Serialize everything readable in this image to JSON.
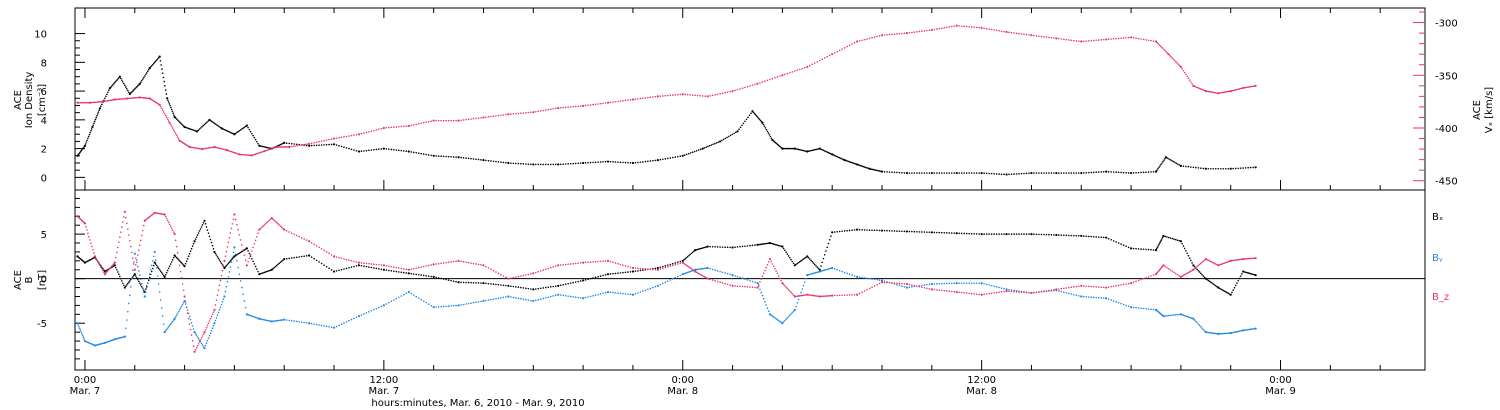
{
  "colors": {
    "black": "#000000",
    "blue": "#1e88e5",
    "red": "#e8366b",
    "axis": "#000000"
  },
  "footer": {
    "xlabel": "hours:minutes, Mar. 6, 2010 - Mar. 9, 2010"
  },
  "x_ticks": [
    {
      "time": "0:00",
      "date": "Mar. 7",
      "hours": 24
    },
    {
      "time": "12:00",
      "date": "Mar. 7",
      "hours": 36
    },
    {
      "time": "0:00",
      "date": "Mar. 8",
      "hours": 48
    },
    {
      "time": "12:00",
      "date": "Mar. 8",
      "hours": 60
    },
    {
      "time": "0:00",
      "date": "Mar. 9",
      "hours": 72
    }
  ],
  "chart_data": [
    {
      "type": "scatter",
      "panel": "top",
      "x_unit": "hours since Mar. 6, 2010 0:00",
      "xlim": [
        23.6,
        77.8
      ],
      "left_axis": {
        "label_line1": "ACE",
        "label_line2": "Ion Density",
        "label_line3": "[cm⁻³]",
        "ylim": [
          -0.6,
          11.5
        ],
        "ticks": [
          0,
          2,
          4,
          6,
          8,
          10
        ],
        "tick_labels": [
          "0",
          "2",
          "4",
          "6",
          "8",
          "10"
        ]
      },
      "right_axis": {
        "label_line1": "ACE",
        "label_line2": "Vₓ [km/s]",
        "ylim": [
          -455,
          -290
        ],
        "ticks": [
          -450,
          -400,
          -350,
          -300
        ],
        "tick_labels": [
          "-450",
          "-400",
          "-350",
          "-300"
        ]
      },
      "series": [
        {
          "axis": "left",
          "color": "black",
          "x": [
            23.7,
            24.0,
            24.3,
            24.6,
            25.0,
            25.4,
            25.8,
            26.2,
            26.6,
            27.0,
            27.3,
            27.6,
            28.0,
            28.5,
            29.0,
            29.5,
            30.0,
            30.5,
            31.0,
            31.5,
            32.0,
            33.0,
            34.0,
            35.0,
            36.0,
            37.0,
            38.0,
            39.0,
            40.0,
            41.0,
            42.0,
            43.0,
            44.0,
            45.0,
            46.0,
            47.0,
            48.0,
            48.8,
            49.5,
            50.2,
            50.8,
            51.2,
            51.6,
            52.0,
            52.5,
            53.0,
            53.5,
            54.0,
            54.5,
            55.0,
            55.5,
            56.0,
            57.0,
            58.0,
            59.0,
            60.0,
            61.0,
            62.0,
            63.0,
            64.0,
            65.0,
            66.0,
            67.0,
            67.4,
            68.0,
            69.0,
            70.0,
            71.0
          ],
          "y": [
            1.5,
            2.2,
            3.5,
            4.8,
            6.2,
            7.0,
            5.8,
            6.5,
            7.6,
            8.4,
            5.5,
            4.2,
            3.5,
            3.2,
            4.0,
            3.4,
            3.0,
            3.6,
            2.2,
            2.0,
            2.4,
            2.2,
            2.3,
            1.8,
            2.0,
            1.8,
            1.5,
            1.4,
            1.2,
            1.0,
            0.9,
            0.9,
            1.0,
            1.1,
            1.0,
            1.2,
            1.5,
            2.0,
            2.5,
            3.2,
            4.6,
            3.8,
            2.6,
            2.0,
            2.0,
            1.8,
            2.0,
            1.6,
            1.2,
            0.9,
            0.6,
            0.4,
            0.3,
            0.3,
            0.3,
            0.3,
            0.2,
            0.3,
            0.3,
            0.3,
            0.4,
            0.3,
            0.4,
            1.4,
            0.8,
            0.6,
            0.6,
            0.7
          ]
        },
        {
          "axis": "right",
          "color": "red",
          "x": [
            23.7,
            24.2,
            24.7,
            25.2,
            25.7,
            26.2,
            26.6,
            27.0,
            27.4,
            27.8,
            28.2,
            28.7,
            29.2,
            29.7,
            30.2,
            30.7,
            31.2,
            31.7,
            32.2,
            33.0,
            34.0,
            35.0,
            36.0,
            37.0,
            38.0,
            39.0,
            40.0,
            41.0,
            42.0,
            43.0,
            44.0,
            45.0,
            46.0,
            47.0,
            48.0,
            49.0,
            50.0,
            51.0,
            52.0,
            53.0,
            54.0,
            55.0,
            56.0,
            57.0,
            58.0,
            59.0,
            60.0,
            61.0,
            62.0,
            63.0,
            64.0,
            65.0,
            66.0,
            67.0,
            67.5,
            68.0,
            68.5,
            69.0,
            69.5,
            70.0,
            70.5,
            71.0
          ],
          "y": [
            -376,
            -376,
            -375,
            -373,
            -372,
            -371,
            -372,
            -378,
            -395,
            -412,
            -418,
            -420,
            -418,
            -421,
            -425,
            -426,
            -422,
            -418,
            -418,
            -415,
            -410,
            -406,
            -400,
            -398,
            -393,
            -393,
            -390,
            -387,
            -385,
            -381,
            -379,
            -376,
            -373,
            -370,
            -368,
            -370,
            -365,
            -358,
            -350,
            -342,
            -330,
            -318,
            -312,
            -310,
            -307,
            -303,
            -305,
            -309,
            -312,
            -315,
            -318,
            -316,
            -314,
            -318,
            -330,
            -342,
            -360,
            -365,
            -367,
            -365,
            -362,
            -360
          ]
        }
      ]
    },
    {
      "type": "scatter",
      "panel": "bottom",
      "x_unit": "hours since Mar. 6, 2010 0:00",
      "xlim": [
        23.6,
        77.8
      ],
      "left_axis": {
        "label_line1": "ACE",
        "label_line2": "B",
        "label_line3": "[nT]",
        "ylim": [
          -9.8,
          9.5
        ],
        "ticks": [
          -5,
          0,
          5
        ],
        "tick_labels": [
          "-5",
          "0",
          "5"
        ]
      },
      "zero_line": true,
      "legend": [
        {
          "label": "Bₓ",
          "color": "black",
          "value": 5.5
        },
        {
          "label": "Bᵧ",
          "color": "blue",
          "value": 2.0
        },
        {
          "label": "B_z",
          "color": "red",
          "value": -1.8
        }
      ],
      "series": [
        {
          "name": "Bx",
          "color": "black",
          "x": [
            23.7,
            24.0,
            24.4,
            24.8,
            25.2,
            25.6,
            26.0,
            26.4,
            26.8,
            27.2,
            27.6,
            28.0,
            28.4,
            28.8,
            29.2,
            29.6,
            30.0,
            30.5,
            31.0,
            31.5,
            32.0,
            33.0,
            34.0,
            35.0,
            36.0,
            37.0,
            38.0,
            39.0,
            40.0,
            41.0,
            42.0,
            43.0,
            44.0,
            45.0,
            46.0,
            47.0,
            48.0,
            48.5,
            49.0,
            50.0,
            51.0,
            51.5,
            52.0,
            52.5,
            53.0,
            53.5,
            54.0,
            55.0,
            56.0,
            57.0,
            58.0,
            59.0,
            60.0,
            61.0,
            62.0,
            63.0,
            64.0,
            65.0,
            66.0,
            67.0,
            67.3,
            68.0,
            68.5,
            69.0,
            69.5,
            70.0,
            70.5,
            71.0
          ],
          "y": [
            2.5,
            1.8,
            2.4,
            0.8,
            1.5,
            -1.0,
            0.5,
            -1.5,
            1.8,
            0.2,
            2.6,
            1.4,
            4.2,
            6.5,
            3.0,
            1.2,
            2.5,
            3.4,
            0.5,
            1.0,
            2.2,
            2.6,
            0.8,
            1.5,
            1.0,
            0.6,
            0.2,
            -0.4,
            -0.5,
            -0.8,
            -1.2,
            -0.8,
            -0.2,
            0.5,
            0.8,
            1.2,
            2.0,
            3.2,
            3.6,
            3.5,
            3.8,
            4.0,
            3.6,
            1.5,
            2.5,
            1.0,
            5.2,
            5.5,
            5.4,
            5.3,
            5.2,
            5.1,
            5.0,
            5.0,
            5.0,
            4.9,
            4.8,
            4.6,
            3.4,
            3.2,
            4.8,
            4.2,
            1.5,
            0.0,
            -1.0,
            -1.8,
            0.8,
            0.4
          ]
        },
        {
          "name": "By",
          "color": "blue",
          "x": [
            23.7,
            24.0,
            24.4,
            24.8,
            25.2,
            25.6,
            26.0,
            26.4,
            26.8,
            27.2,
            27.6,
            28.0,
            28.4,
            28.8,
            29.2,
            29.6,
            30.0,
            30.5,
            31.0,
            31.5,
            32.0,
            33.0,
            34.0,
            35.0,
            36.0,
            37.0,
            38.0,
            39.0,
            40.0,
            41.0,
            42.0,
            43.0,
            44.0,
            45.0,
            46.0,
            47.0,
            48.0,
            48.5,
            49.0,
            50.0,
            51.0,
            51.5,
            52.0,
            52.5,
            53.0,
            53.5,
            54.0,
            55.0,
            56.0,
            57.0,
            58.0,
            59.0,
            60.0,
            61.0,
            62.0,
            63.0,
            64.0,
            65.0,
            66.0,
            67.0,
            67.3,
            68.0,
            68.5,
            69.0,
            69.5,
            70.0,
            70.5,
            71.0
          ],
          "y": [
            -5.0,
            -7.0,
            -7.5,
            -7.2,
            -6.8,
            -6.5,
            2.8,
            -2.0,
            3.0,
            -6.0,
            -4.5,
            -2.5,
            -6.0,
            -7.8,
            -5.0,
            -2.0,
            3.5,
            -4.0,
            -4.5,
            -4.8,
            -4.6,
            -5.0,
            -5.5,
            -4.2,
            -3.0,
            -1.5,
            -3.2,
            -3.0,
            -2.5,
            -2.0,
            -2.5,
            -1.8,
            -2.2,
            -1.5,
            -1.8,
            -0.8,
            0.5,
            1.0,
            1.2,
            0.4,
            -0.5,
            -4.0,
            -5.0,
            -3.5,
            0.4,
            0.8,
            1.2,
            0.2,
            -0.2,
            -1.0,
            -0.6,
            -0.5,
            -0.5,
            -1.2,
            -1.6,
            -1.3,
            -2.0,
            -2.2,
            -3.2,
            -3.5,
            -4.2,
            -4.0,
            -4.5,
            -6.0,
            -6.2,
            -6.1,
            -5.8,
            -5.6
          ]
        },
        {
          "name": "Bz",
          "color": "red",
          "x": [
            23.7,
            24.0,
            24.4,
            24.8,
            25.2,
            25.6,
            26.0,
            26.4,
            26.8,
            27.2,
            27.6,
            28.0,
            28.4,
            28.8,
            29.2,
            29.6,
            30.0,
            30.5,
            31.0,
            31.5,
            32.0,
            33.0,
            34.0,
            35.0,
            36.0,
            37.0,
            38.0,
            39.0,
            40.0,
            41.0,
            42.0,
            43.0,
            44.0,
            45.0,
            46.0,
            47.0,
            48.0,
            48.5,
            49.0,
            50.0,
            51.0,
            51.5,
            52.0,
            52.5,
            53.0,
            53.5,
            54.0,
            55.0,
            56.0,
            57.0,
            58.0,
            59.0,
            60.0,
            61.0,
            62.0,
            63.0,
            64.0,
            65.0,
            66.0,
            67.0,
            67.3,
            68.0,
            68.5,
            69.0,
            69.5,
            70.0,
            70.5,
            71.0
          ],
          "y": [
            7.0,
            6.2,
            2.5,
            0.5,
            1.8,
            7.5,
            1.0,
            6.5,
            7.4,
            7.2,
            5.0,
            -2.0,
            -8.2,
            -6.0,
            -3.5,
            2.0,
            7.2,
            1.5,
            5.5,
            6.8,
            5.5,
            4.2,
            2.5,
            1.8,
            1.5,
            1.0,
            1.6,
            2.0,
            1.5,
            0.0,
            0.6,
            1.5,
            1.8,
            2.0,
            1.2,
            1.0,
            1.8,
            0.8,
            0.0,
            -0.8,
            -1.0,
            2.2,
            -0.5,
            -2.0,
            -1.8,
            -2.0,
            -1.9,
            -1.8,
            -0.4,
            -0.6,
            -1.2,
            -1.5,
            -1.8,
            -1.4,
            -1.6,
            -1.2,
            -0.8,
            -1.0,
            -0.5,
            0.5,
            1.5,
            0.2,
            1.0,
            2.2,
            1.5,
            2.0,
            2.2,
            2.3
          ]
        }
      ]
    }
  ]
}
